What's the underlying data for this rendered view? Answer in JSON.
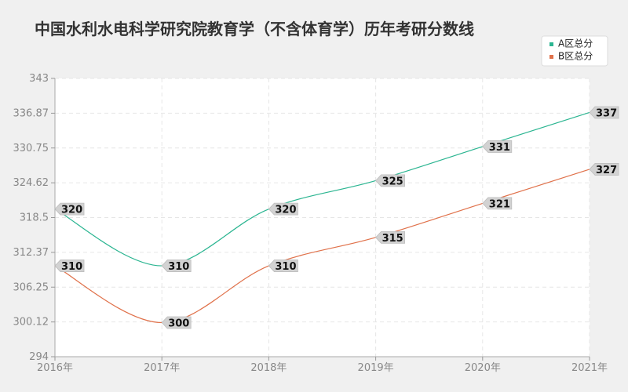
{
  "chart_data": {
    "type": "line",
    "title": "中国水利水电科学研究院教育学（不含体育学）历年考研分数线",
    "categories": [
      "2016年",
      "2017年",
      "2018年",
      "2019年",
      "2020年",
      "2021年"
    ],
    "y_ticks": [
      "294",
      "300.12",
      "306.25",
      "312.37",
      "318.5",
      "324.62",
      "330.75",
      "336.87",
      "343"
    ],
    "ylim": [
      294,
      343
    ],
    "grid": true,
    "legend_position": "top-right",
    "series": [
      {
        "name": "A区总分",
        "color": "#2bb591",
        "values": [
          320,
          310,
          320,
          325,
          331,
          337
        ]
      },
      {
        "name": "B区总分",
        "color": "#e0714a",
        "values": [
          310,
          300,
          310,
          315,
          321,
          327
        ]
      }
    ]
  }
}
